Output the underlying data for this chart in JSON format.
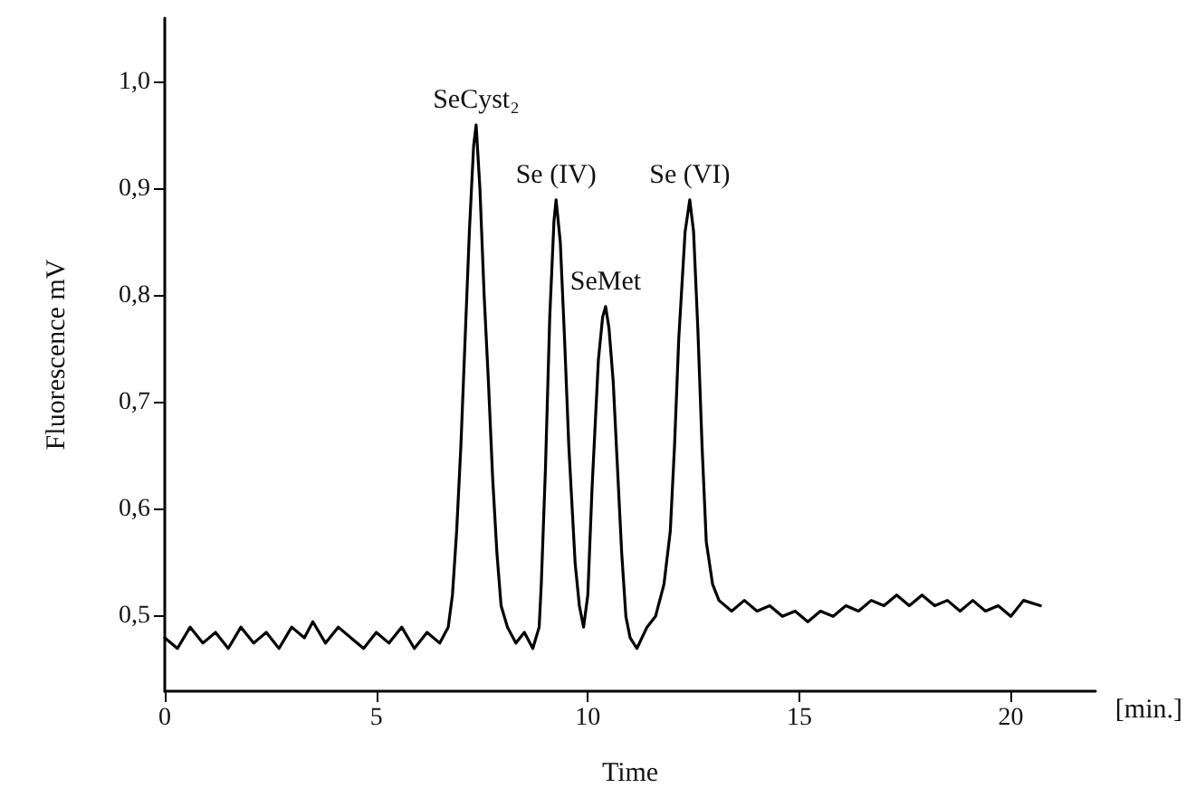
{
  "chart_data": {
    "type": "line",
    "xlabel": "Time",
    "ylabel": "Fluorescence mV",
    "annotations": [
      {
        "text": "SeCyst₂",
        "x": 7.36,
        "y": 0.96
      },
      {
        "text": "Se (IV)",
        "x": 9.25,
        "y": 0.89
      },
      {
        "text": "SeMet",
        "x": 10.42,
        "y": 0.79
      },
      {
        "text": "Se (VI)",
        "x": 12.41,
        "y": 0.89
      },
      "[min.]"
    ],
    "xlim": [
      0,
      22
    ],
    "xticks": [
      0,
      5,
      10,
      15,
      20
    ],
    "ylim": [
      0.43,
      1.06
    ],
    "yticks": [
      {
        "value": 0.5,
        "label": "0,5"
      },
      {
        "value": 0.6,
        "label": "0,6"
      },
      {
        "value": 0.7,
        "label": "0,7"
      },
      {
        "value": 0.8,
        "label": "0,8"
      },
      {
        "value": 0.9,
        "label": "0,9"
      },
      {
        "value": 1.0,
        "label": "1,0"
      }
    ],
    "grid": false,
    "marker": "none",
    "line_style": "solid",
    "series": [
      {
        "color": "#000000",
        "x": [
          0,
          0.3,
          0.6,
          0.9,
          1.2,
          1.5,
          1.8,
          2.1,
          2.4,
          2.7,
          3.0,
          3.3,
          3.5,
          3.8,
          4.1,
          4.4,
          4.7,
          5.0,
          5.3,
          5.6,
          5.9,
          6.2,
          6.5,
          6.7,
          6.8,
          6.9,
          7.0,
          7.1,
          7.2,
          7.3,
          7.36,
          7.45,
          7.55,
          7.65,
          7.75,
          7.85,
          7.95,
          8.1,
          8.3,
          8.5,
          8.7,
          8.85,
          8.9,
          9.0,
          9.1,
          9.2,
          9.25,
          9.35,
          9.45,
          9.55,
          9.7,
          9.8,
          9.9,
          10.0,
          10.1,
          10.25,
          10.35,
          10.42,
          10.5,
          10.6,
          10.7,
          10.8,
          10.9,
          11.0,
          11.16,
          11.4,
          11.6,
          11.8,
          11.95,
          12.05,
          12.15,
          12.3,
          12.41,
          12.5,
          12.6,
          12.7,
          12.8,
          12.95,
          13.1,
          13.4,
          13.7,
          14.0,
          14.3,
          14.6,
          14.9,
          15.2,
          15.5,
          15.8,
          16.1,
          16.4,
          16.7,
          17.0,
          17.3,
          17.6,
          17.9,
          18.2,
          18.5,
          18.8,
          19.1,
          19.4,
          19.7,
          20.0,
          20.3,
          20.7
        ],
        "values": [
          0.48,
          0.47,
          0.49,
          0.475,
          0.485,
          0.47,
          0.49,
          0.475,
          0.485,
          0.47,
          0.49,
          0.48,
          0.495,
          0.475,
          0.49,
          0.48,
          0.47,
          0.485,
          0.475,
          0.49,
          0.47,
          0.485,
          0.475,
          0.49,
          0.52,
          0.58,
          0.66,
          0.76,
          0.86,
          0.94,
          0.96,
          0.9,
          0.8,
          0.72,
          0.63,
          0.56,
          0.51,
          0.49,
          0.475,
          0.485,
          0.47,
          0.49,
          0.53,
          0.64,
          0.78,
          0.87,
          0.89,
          0.85,
          0.76,
          0.66,
          0.55,
          0.51,
          0.49,
          0.52,
          0.62,
          0.74,
          0.78,
          0.79,
          0.77,
          0.72,
          0.64,
          0.56,
          0.5,
          0.48,
          0.47,
          0.49,
          0.5,
          0.53,
          0.58,
          0.66,
          0.76,
          0.86,
          0.89,
          0.86,
          0.77,
          0.66,
          0.57,
          0.53,
          0.515,
          0.505,
          0.515,
          0.505,
          0.51,
          0.5,
          0.505,
          0.495,
          0.505,
          0.5,
          0.51,
          0.505,
          0.515,
          0.51,
          0.52,
          0.51,
          0.52,
          0.51,
          0.515,
          0.505,
          0.515,
          0.505,
          0.51,
          0.5,
          0.515,
          0.51
        ]
      }
    ]
  }
}
